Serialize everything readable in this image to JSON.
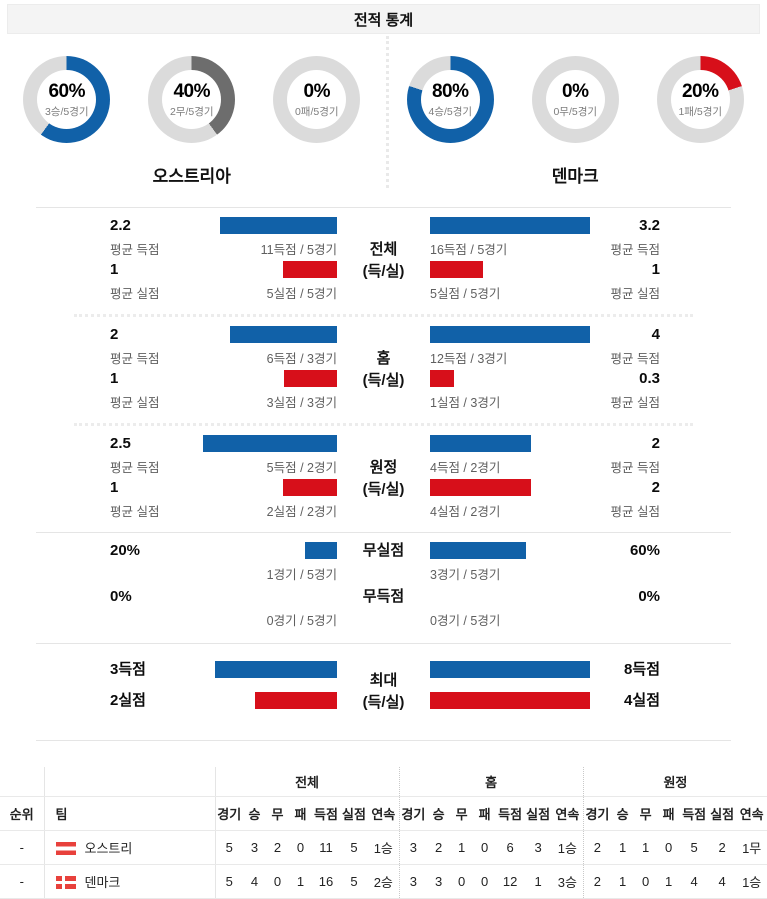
{
  "title": "전적 통계",
  "colors": {
    "blue": "#1161a8",
    "red": "#d70f1a",
    "gray": "#6d6d6d",
    "track": "#dbdbdb"
  },
  "teams": {
    "home": {
      "name": "오스트리아",
      "donuts": [
        {
          "pct": 60,
          "pct_text": "60%",
          "label": "3승/5경기",
          "color": "blue"
        },
        {
          "pct": 40,
          "pct_text": "40%",
          "label": "2무/5경기",
          "color": "gray"
        },
        {
          "pct": 0,
          "pct_text": "0%",
          "label": "0패/5경기",
          "color": "gray"
        }
      ]
    },
    "away": {
      "name": "덴마크",
      "donuts": [
        {
          "pct": 80,
          "pct_text": "80%",
          "label": "4승/5경기",
          "color": "blue"
        },
        {
          "pct": 0,
          "pct_text": "0%",
          "label": "0무/5경기",
          "color": "gray"
        },
        {
          "pct": 20,
          "pct_text": "20%",
          "label": "1패/5경기",
          "color": "red"
        }
      ]
    }
  },
  "sections": [
    {
      "label1": "전체",
      "label2": "(득/실)",
      "home": {
        "rows": [
          {
            "value": "2.2",
            "caption": "평균 득점",
            "color": "blue",
            "pct": 73,
            "bar_caption": "11득점 / 5경기"
          },
          {
            "value": "1",
            "caption": "평균 실점",
            "color": "red",
            "pct": 34,
            "bar_caption": "5실점 / 5경기"
          }
        ]
      },
      "away": {
        "rows": [
          {
            "value": "3.2",
            "caption": "평균 득점",
            "color": "blue",
            "pct": 100,
            "bar_caption": "16득점 / 5경기"
          },
          {
            "value": "1",
            "caption": "평균 실점",
            "color": "red",
            "pct": 33,
            "bar_caption": "5실점 / 5경기"
          }
        ]
      }
    },
    {
      "label1": "홈",
      "label2": "(득/실)",
      "home": {
        "rows": [
          {
            "value": "2",
            "caption": "평균 득점",
            "color": "blue",
            "pct": 67,
            "bar_caption": "6득점 / 3경기"
          },
          {
            "value": "1",
            "caption": "평균 실점",
            "color": "red",
            "pct": 33,
            "bar_caption": "3실점 / 3경기"
          }
        ]
      },
      "away": {
        "rows": [
          {
            "value": "4",
            "caption": "평균 득점",
            "color": "blue",
            "pct": 100,
            "bar_caption": "12득점 / 3경기"
          },
          {
            "value": "0.3",
            "caption": "평균 실점",
            "color": "red",
            "pct": 15,
            "bar_caption": "1실점 / 3경기"
          }
        ]
      }
    },
    {
      "label1": "원정",
      "label2": "(득/실)",
      "home": {
        "rows": [
          {
            "value": "2.5",
            "caption": "평균 득점",
            "color": "blue",
            "pct": 84,
            "bar_caption": "5득점 / 2경기"
          },
          {
            "value": "1",
            "caption": "평균 실점",
            "color": "red",
            "pct": 34,
            "bar_caption": "2실점 / 2경기"
          }
        ]
      },
      "away": {
        "rows": [
          {
            "value": "2",
            "caption": "평균 득점",
            "color": "blue",
            "pct": 63,
            "bar_caption": "4득점 / 2경기"
          },
          {
            "value": "2",
            "caption": "평균 실점",
            "color": "red",
            "pct": 63,
            "bar_caption": "4실점 / 2경기"
          }
        ]
      }
    },
    {
      "row_labels": [
        "무실점",
        "무득점"
      ],
      "home": {
        "rows": [
          {
            "value": "20%",
            "color": "blue",
            "pct": 20,
            "bar_caption": "1경기 / 5경기"
          },
          {
            "value": "0%",
            "color": "blue",
            "pct": 0,
            "bar_caption": "0경기 / 5경기"
          }
        ]
      },
      "away": {
        "rows": [
          {
            "value": "60%",
            "color": "blue",
            "pct": 60,
            "bar_caption": "3경기 / 5경기"
          },
          {
            "value": "0%",
            "color": "blue",
            "pct": 0,
            "bar_caption": "0경기 / 5경기"
          }
        ]
      }
    },
    {
      "label1": "최대",
      "label2": "(득/실)",
      "home": {
        "rows": [
          {
            "value": "3득점",
            "color": "blue",
            "pct": 76
          },
          {
            "value": "2실점",
            "color": "red",
            "pct": 51
          }
        ]
      },
      "away": {
        "rows": [
          {
            "value": "8득점",
            "color": "blue",
            "pct": 100
          },
          {
            "value": "4실점",
            "color": "red",
            "pct": 100
          }
        ]
      }
    }
  ],
  "table": {
    "rank_header": "순위",
    "team_header": "팀",
    "group_headers": [
      "전체",
      "홈",
      "원정"
    ],
    "col_headers": [
      "경기",
      "승",
      "무",
      "패",
      "득점",
      "실점",
      "연속"
    ],
    "rows": [
      {
        "rank": "-",
        "team": "오스트리",
        "flag": "austria-flag-icon",
        "all": [
          "5",
          "3",
          "2",
          "0",
          "11",
          "5",
          "1승"
        ],
        "home": [
          "3",
          "2",
          "1",
          "0",
          "6",
          "3",
          "1승"
        ],
        "away": [
          "2",
          "1",
          "1",
          "0",
          "5",
          "2",
          "1무"
        ]
      },
      {
        "rank": "-",
        "team": "덴마크",
        "flag": "denmark-flag-icon",
        "all": [
          "5",
          "4",
          "0",
          "1",
          "16",
          "5",
          "2승"
        ],
        "home": [
          "3",
          "3",
          "0",
          "0",
          "12",
          "1",
          "3승"
        ],
        "away": [
          "2",
          "1",
          "0",
          "1",
          "4",
          "4",
          "1승"
        ]
      }
    ]
  },
  "chart_data": [
    {
      "type": "pie",
      "title": "오스트리아 승·무·패 비율",
      "slices": [
        {
          "label": "승",
          "pct": 60,
          "detail": "3승/5경기"
        },
        {
          "label": "무",
          "pct": 40,
          "detail": "2무/5경기"
        },
        {
          "label": "패",
          "pct": 0,
          "detail": "0패/5경기"
        }
      ]
    },
    {
      "type": "pie",
      "title": "덴마크 승·무·패 비율",
      "slices": [
        {
          "label": "승",
          "pct": 80,
          "detail": "4승/5경기"
        },
        {
          "label": "무",
          "pct": 0,
          "detail": "0무/5경기"
        },
        {
          "label": "패",
          "pct": 20,
          "detail": "1패/5경기"
        }
      ]
    },
    {
      "type": "bar",
      "title": "전체 (득/실)",
      "rows": [
        {
          "team": "오스트리아",
          "metric": "득점",
          "total": 11,
          "games": 5,
          "avg": 2.2
        },
        {
          "team": "오스트리아",
          "metric": "실점",
          "total": 5,
          "games": 5,
          "avg": 1
        },
        {
          "team": "덴마크",
          "metric": "득점",
          "total": 16,
          "games": 5,
          "avg": 3.2
        },
        {
          "team": "덴마크",
          "metric": "실점",
          "total": 5,
          "games": 5,
          "avg": 1
        }
      ]
    },
    {
      "type": "bar",
      "title": "홈 (득/실)",
      "rows": [
        {
          "team": "오스트리아",
          "metric": "득점",
          "total": 6,
          "games": 3,
          "avg": 2
        },
        {
          "team": "오스트리아",
          "metric": "실점",
          "total": 3,
          "games": 3,
          "avg": 1
        },
        {
          "team": "덴마크",
          "metric": "득점",
          "total": 12,
          "games": 3,
          "avg": 4
        },
        {
          "team": "덴마크",
          "metric": "실점",
          "total": 1,
          "games": 3,
          "avg": 0.3
        }
      ]
    },
    {
      "type": "bar",
      "title": "원정 (득/실)",
      "rows": [
        {
          "team": "오스트리아",
          "metric": "득점",
          "total": 5,
          "games": 2,
          "avg": 2.5
        },
        {
          "team": "오스트리아",
          "metric": "실점",
          "total": 2,
          "games": 2,
          "avg": 1
        },
        {
          "team": "덴마크",
          "metric": "득점",
          "total": 4,
          "games": 2,
          "avg": 2
        },
        {
          "team": "덴마크",
          "metric": "실점",
          "total": 4,
          "games": 2,
          "avg": 2
        }
      ]
    },
    {
      "type": "bar",
      "title": "무실점 / 무득점",
      "rows": [
        {
          "team": "오스트리아",
          "metric": "무실점",
          "pct": 20,
          "games": 1,
          "total_games": 5
        },
        {
          "team": "오스트리아",
          "metric": "무득점",
          "pct": 0,
          "games": 0,
          "total_games": 5
        },
        {
          "team": "덴마크",
          "metric": "무실점",
          "pct": 60,
          "games": 3,
          "total_games": 5
        },
        {
          "team": "덴마크",
          "metric": "무득점",
          "pct": 0,
          "games": 0,
          "total_games": 5
        }
      ]
    },
    {
      "type": "bar",
      "title": "최대 (득/실)",
      "rows": [
        {
          "team": "오스트리아",
          "metric": "최대 득점",
          "value": 3
        },
        {
          "team": "오스트리아",
          "metric": "최대 실점",
          "value": 2
        },
        {
          "team": "덴마크",
          "metric": "최대 득점",
          "value": 8
        },
        {
          "team": "덴마크",
          "metric": "최대 실점",
          "value": 4
        }
      ]
    }
  ]
}
